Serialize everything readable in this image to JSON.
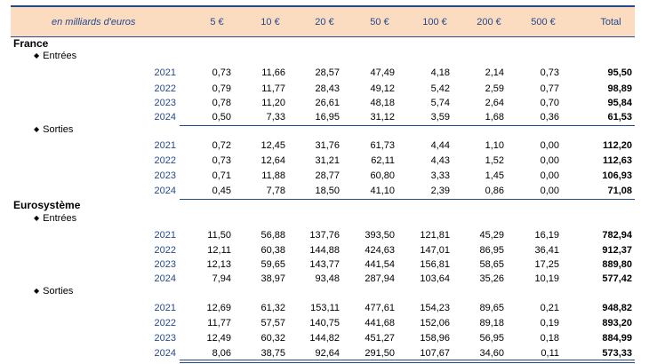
{
  "header": {
    "unit": "en milliards d'euros",
    "columns": [
      "5 €",
      "10 €",
      "20 €",
      "50 €",
      "100 €",
      "200 €",
      "500 €",
      "Total"
    ]
  },
  "sections": [
    {
      "title": "France",
      "groups": [
        {
          "label": "Entrées",
          "rows": [
            {
              "year": "2021",
              "values": [
                "0,73",
                "11,66",
                "28,57",
                "47,49",
                "4,18",
                "2,14",
                "0,73"
              ],
              "total": "95,50"
            },
            {
              "year": "2022",
              "values": [
                "0,79",
                "11,77",
                "28,43",
                "49,12",
                "5,42",
                "2,59",
                "0,77"
              ],
              "total": "98,89"
            },
            {
              "year": "2023",
              "values": [
                "0,78",
                "11,20",
                "26,61",
                "48,18",
                "5,74",
                "2,64",
                "0,70"
              ],
              "total": "95,84"
            },
            {
              "year": "2024",
              "values": [
                "0,50",
                "7,33",
                "16,95",
                "31,12",
                "3,59",
                "1,68",
                "0,36"
              ],
              "total": "61,53"
            }
          ]
        },
        {
          "label": "Sorties",
          "rows": [
            {
              "year": "2021",
              "values": [
                "0,72",
                "12,45",
                "31,76",
                "61,73",
                "4,44",
                "1,10",
                "0,00"
              ],
              "total": "112,20"
            },
            {
              "year": "2022",
              "values": [
                "0,73",
                "12,64",
                "31,21",
                "62,11",
                "4,43",
                "1,52",
                "0,00"
              ],
              "total": "112,63"
            },
            {
              "year": "2023",
              "values": [
                "0,71",
                "11,88",
                "28,77",
                "60,80",
                "3,33",
                "1,45",
                "0,00"
              ],
              "total": "106,93"
            },
            {
              "year": "2024",
              "values": [
                "0,45",
                "7,78",
                "18,50",
                "41,10",
                "2,39",
                "0,86",
                "0,00"
              ],
              "total": "71,08"
            }
          ]
        }
      ]
    },
    {
      "title": "Eurosystème",
      "groups": [
        {
          "label": "Entrées",
          "rows": [
            {
              "year": "2021",
              "values": [
                "11,50",
                "56,88",
                "137,76",
                "393,50",
                "121,81",
                "45,29",
                "16,19"
              ],
              "total": "782,94"
            },
            {
              "year": "2022",
              "values": [
                "12,11",
                "60,38",
                "144,88",
                "424,63",
                "147,01",
                "86,95",
                "36,41"
              ],
              "total": "912,37"
            },
            {
              "year": "2023",
              "values": [
                "12,13",
                "59,65",
                "143,77",
                "441,54",
                "156,81",
                "58,65",
                "17,25"
              ],
              "total": "889,80"
            },
            {
              "year": "2024",
              "values": [
                "7,94",
                "38,97",
                "93,48",
                "287,94",
                "103,64",
                "35,26",
                "10,19"
              ],
              "total": "577,42"
            }
          ]
        },
        {
          "label": "Sorties",
          "rows": [
            {
              "year": "2021",
              "values": [
                "12,69",
                "61,32",
                "153,11",
                "477,61",
                "154,23",
                "89,65",
                "0,21"
              ],
              "total": "948,82"
            },
            {
              "year": "2022",
              "values": [
                "11,77",
                "57,57",
                "140,75",
                "441,68",
                "152,06",
                "89,18",
                "0,19"
              ],
              "total": "893,20"
            },
            {
              "year": "2023",
              "values": [
                "12,49",
                "60,32",
                "144,82",
                "451,27",
                "158,96",
                "56,95",
                "0,18"
              ],
              "total": "884,99"
            },
            {
              "year": "2024",
              "values": [
                "8,06",
                "38,75",
                "92,64",
                "291,50",
                "107,67",
                "34,60",
                "0,11"
              ],
              "total": "573,33"
            }
          ]
        }
      ]
    }
  ]
}
